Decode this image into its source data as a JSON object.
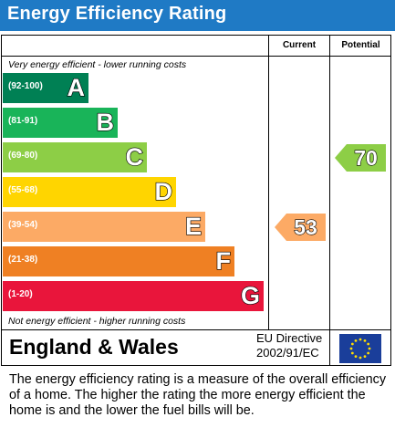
{
  "title": "Energy Efficiency Rating",
  "columns": {
    "current": "Current",
    "potential": "Potential"
  },
  "notes": {
    "top": "Very energy efficient - lower running costs",
    "bottom": "Not energy efficient - higher running costs"
  },
  "footer": {
    "country": "England & Wales",
    "directive_line1": "EU Directive",
    "directive_line2": "2002/91/EC"
  },
  "description": "The energy efficiency rating is a measure of the overall efficiency of a home. The higher the rating the more energy efficient the home is and the lower the fuel bills will be.",
  "chart_data": {
    "type": "bar",
    "title": "Energy Efficiency Rating",
    "bands": [
      {
        "letter": "A",
        "range": "(92-100)",
        "color": "#008054"
      },
      {
        "letter": "B",
        "range": "(81-91)",
        "color": "#19b459"
      },
      {
        "letter": "C",
        "range": "(69-80)",
        "color": "#8dce46"
      },
      {
        "letter": "D",
        "range": "(55-68)",
        "color": "#ffd500"
      },
      {
        "letter": "E",
        "range": "(39-54)",
        "color": "#fcaa65"
      },
      {
        "letter": "F",
        "range": "(21-38)",
        "color": "#ef8023"
      },
      {
        "letter": "G",
        "range": "(1-20)",
        "color": "#e9153b"
      }
    ],
    "current": {
      "value": 53,
      "band": "E",
      "color": "#fcaa65"
    },
    "potential": {
      "value": 70,
      "band": "C",
      "color": "#8dce46"
    }
  }
}
